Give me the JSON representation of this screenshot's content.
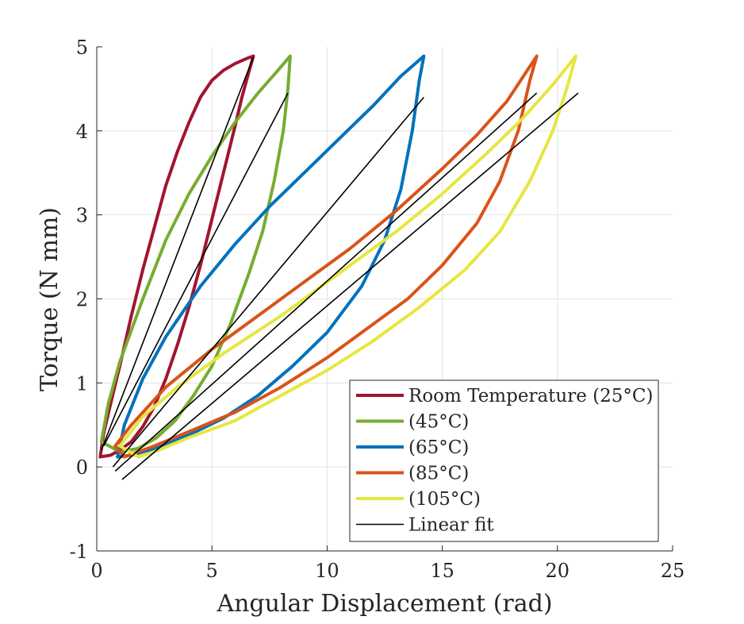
{
  "chart_data": {
    "type": "line",
    "title": "",
    "xlabel": "Angular Displacement (rad)",
    "ylabel": "Torque (N mm)",
    "xlim": [
      0,
      25
    ],
    "ylim": [
      -1,
      5
    ],
    "xticks": [
      0,
      5,
      10,
      15,
      20,
      25
    ],
    "yticks": [
      -1,
      0,
      1,
      2,
      3,
      4,
      5
    ],
    "xtick_labels": [
      "0",
      "5",
      "10",
      "15",
      "20",
      "25"
    ],
    "ytick_labels": [
      "-1",
      "0",
      "1",
      "2",
      "3",
      "4",
      "5"
    ],
    "grid": true,
    "legend_position": "bottom-right",
    "series": [
      {
        "name": "Room Temperature (25°C)",
        "color": "#A2142F",
        "points": [
          [
            0.15,
            0.12
          ],
          [
            0.3,
            0.4
          ],
          [
            0.6,
            0.75
          ],
          [
            1.0,
            1.2
          ],
          [
            1.5,
            1.8
          ],
          [
            2.0,
            2.35
          ],
          [
            2.5,
            2.85
          ],
          [
            3.0,
            3.35
          ],
          [
            3.5,
            3.75
          ],
          [
            4.0,
            4.1
          ],
          [
            4.5,
            4.4
          ],
          [
            5.0,
            4.6
          ],
          [
            5.5,
            4.72
          ],
          [
            6.0,
            4.8
          ],
          [
            6.5,
            4.86
          ],
          [
            6.8,
            4.89
          ],
          [
            6.6,
            4.7
          ],
          [
            6.3,
            4.4
          ],
          [
            6.0,
            4.05
          ],
          [
            5.5,
            3.5
          ],
          [
            5.0,
            2.95
          ],
          [
            4.5,
            2.4
          ],
          [
            4.0,
            1.9
          ],
          [
            3.5,
            1.45
          ],
          [
            3.0,
            1.05
          ],
          [
            2.5,
            0.72
          ],
          [
            2.0,
            0.48
          ],
          [
            1.5,
            0.3
          ],
          [
            1.0,
            0.2
          ],
          [
            0.6,
            0.14
          ],
          [
            0.15,
            0.12
          ]
        ]
      },
      {
        "name": "(45°C)",
        "color": "#77AC30",
        "points": [
          [
            0.2,
            0.3
          ],
          [
            0.5,
            0.75
          ],
          [
            1.0,
            1.25
          ],
          [
            2.0,
            2.0
          ],
          [
            3.0,
            2.7
          ],
          [
            4.0,
            3.25
          ],
          [
            5.0,
            3.7
          ],
          [
            6.0,
            4.1
          ],
          [
            7.0,
            4.45
          ],
          [
            7.8,
            4.7
          ],
          [
            8.4,
            4.89
          ],
          [
            8.3,
            4.5
          ],
          [
            8.1,
            4.0
          ],
          [
            7.7,
            3.4
          ],
          [
            7.2,
            2.8
          ],
          [
            6.6,
            2.3
          ],
          [
            5.8,
            1.7
          ],
          [
            5.0,
            1.2
          ],
          [
            4.2,
            0.85
          ],
          [
            3.4,
            0.55
          ],
          [
            2.6,
            0.35
          ],
          [
            1.8,
            0.22
          ],
          [
            1.0,
            0.18
          ],
          [
            0.2,
            0.3
          ]
        ]
      },
      {
        "name": "(65°C)",
        "color": "#0072BD",
        "points": [
          [
            0.9,
            0.12
          ],
          [
            1.2,
            0.5
          ],
          [
            2.0,
            1.05
          ],
          [
            3.0,
            1.55
          ],
          [
            4.5,
            2.15
          ],
          [
            6.0,
            2.65
          ],
          [
            7.5,
            3.1
          ],
          [
            9.0,
            3.5
          ],
          [
            10.5,
            3.9
          ],
          [
            12.0,
            4.3
          ],
          [
            13.2,
            4.65
          ],
          [
            14.2,
            4.89
          ],
          [
            14.0,
            4.6
          ],
          [
            13.7,
            4.0
          ],
          [
            13.2,
            3.3
          ],
          [
            12.5,
            2.7
          ],
          [
            11.5,
            2.15
          ],
          [
            10.0,
            1.6
          ],
          [
            8.5,
            1.2
          ],
          [
            7.0,
            0.85
          ],
          [
            5.5,
            0.58
          ],
          [
            4.0,
            0.38
          ],
          [
            2.5,
            0.22
          ],
          [
            1.5,
            0.14
          ],
          [
            0.9,
            0.12
          ]
        ]
      },
      {
        "name": "(85°C)",
        "color": "#D95319",
        "points": [
          [
            0.8,
            0.25
          ],
          [
            1.5,
            0.5
          ],
          [
            3.0,
            0.95
          ],
          [
            5.0,
            1.4
          ],
          [
            7.0,
            1.8
          ],
          [
            9.0,
            2.2
          ],
          [
            11.0,
            2.6
          ],
          [
            13.0,
            3.05
          ],
          [
            15.0,
            3.55
          ],
          [
            16.5,
            3.95
          ],
          [
            17.8,
            4.35
          ],
          [
            19.1,
            4.89
          ],
          [
            18.8,
            4.6
          ],
          [
            18.3,
            4.0
          ],
          [
            17.5,
            3.4
          ],
          [
            16.5,
            2.9
          ],
          [
            15.0,
            2.4
          ],
          [
            13.5,
            2.0
          ],
          [
            12.0,
            1.7
          ],
          [
            10.0,
            1.3
          ],
          [
            8.0,
            0.95
          ],
          [
            6.0,
            0.65
          ],
          [
            4.0,
            0.42
          ],
          [
            2.5,
            0.25
          ],
          [
            1.5,
            0.15
          ],
          [
            1.2,
            0.12
          ],
          [
            0.8,
            0.25
          ]
        ]
      },
      {
        "name": "(105°C)",
        "color": "#E6E640",
        "points": [
          [
            1.0,
            0.25
          ],
          [
            2.0,
            0.6
          ],
          [
            3.5,
            0.95
          ],
          [
            5.5,
            1.35
          ],
          [
            8.0,
            1.8
          ],
          [
            10.5,
            2.3
          ],
          [
            13.0,
            2.8
          ],
          [
            15.0,
            3.25
          ],
          [
            17.0,
            3.75
          ],
          [
            18.5,
            4.15
          ],
          [
            19.8,
            4.55
          ],
          [
            20.8,
            4.89
          ],
          [
            20.4,
            4.5
          ],
          [
            19.8,
            4.0
          ],
          [
            18.8,
            3.4
          ],
          [
            17.5,
            2.8
          ],
          [
            16.0,
            2.35
          ],
          [
            14.0,
            1.9
          ],
          [
            12.0,
            1.5
          ],
          [
            10.0,
            1.15
          ],
          [
            8.0,
            0.85
          ],
          [
            6.0,
            0.55
          ],
          [
            4.0,
            0.35
          ],
          [
            2.5,
            0.18
          ],
          [
            1.8,
            0.12
          ],
          [
            1.0,
            0.25
          ]
        ]
      },
      {
        "name": "Linear fit",
        "color": "#000000",
        "segments": [
          [
            [
              0.2,
              0.2
            ],
            [
              6.8,
              4.88
            ]
          ],
          [
            [
              0.3,
              0.25
            ],
            [
              8.3,
              4.45
            ]
          ],
          [
            [
              0.7,
              0.0
            ],
            [
              14.2,
              4.4
            ]
          ],
          [
            [
              0.8,
              -0.05
            ],
            [
              19.1,
              4.45
            ]
          ],
          [
            [
              1.1,
              -0.15
            ],
            [
              20.9,
              4.45
            ]
          ]
        ]
      }
    ]
  }
}
